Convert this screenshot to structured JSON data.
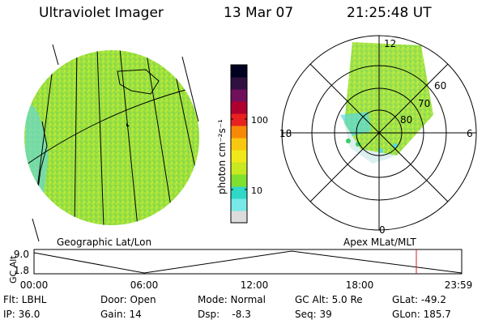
{
  "header": {
    "title": "Ultraviolet Imager",
    "date": "13 Mar 07",
    "time": "21:25:48 UT"
  },
  "colorbar": {
    "label": "photon cm⁻²s⁻¹",
    "ticks": [
      "100",
      "10"
    ],
    "colors": [
      "#dcdcdc",
      "#78e8e8",
      "#30d8c8",
      "#80e030",
      "#c8e820",
      "#f0e818",
      "#f8c810",
      "#f88808",
      "#e82020",
      "#b00030",
      "#70105a",
      "#301040",
      "#000020"
    ]
  },
  "polar": {
    "ticks": {
      "top": "12",
      "bottom": "0",
      "left": "18",
      "right": "6"
    },
    "rings": [
      "60",
      "70",
      "80"
    ]
  },
  "geo_label": "Geographic Lat/Lon",
  "apex_label": "Apex MLat/MLT",
  "alt_plot": {
    "ylabel": "GC Alt",
    "yticks": [
      "9.0",
      "1.8"
    ],
    "xticks": [
      "00:00",
      "06:00",
      "12:00",
      "18:00",
      "23:59"
    ],
    "marker_color": "#d02020"
  },
  "info": {
    "row1": [
      "Flt: LBHL",
      "Door: Open",
      "Mode: Normal",
      "GC Alt: 5.0 Re",
      "GLat: -49.2"
    ],
    "row2": [
      "IP: 36.0",
      "Gain: 14",
      "Dsp:    -8.3",
      "Seq: 39",
      "GLon: 185.7"
    ]
  }
}
